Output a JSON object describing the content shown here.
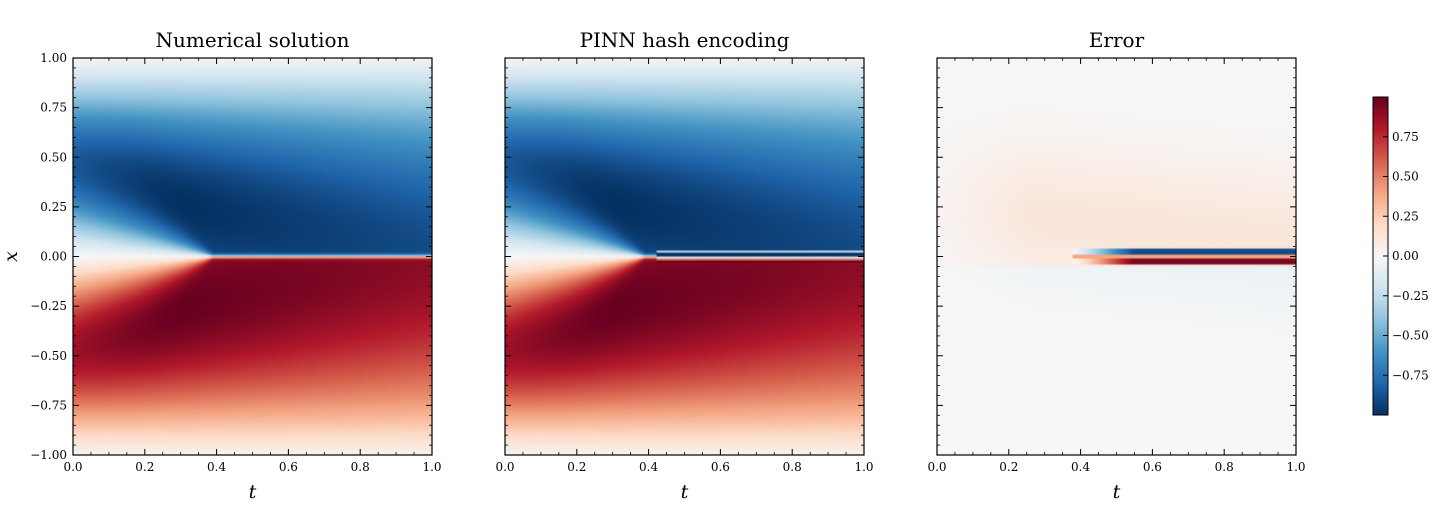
{
  "chart_data": [
    {
      "type": "heatmap",
      "title": "Numerical solution",
      "field": "numerical",
      "xlabel": "t",
      "ylabel": "x",
      "xlim": [
        0.0,
        1.0
      ],
      "ylim": [
        -1.0,
        1.0
      ],
      "xticks": [
        "0.0",
        "0.2",
        "0.4",
        "0.6",
        "0.8",
        "1.0"
      ],
      "yticks": [
        "1.00",
        "0.75",
        "0.50",
        "0.25",
        "0.00",
        "−0.25",
        "−0.50",
        "−0.75",
        "−1.00"
      ],
      "show_yticklabels": true,
      "colormap": "RdBu_r"
    },
    {
      "type": "heatmap",
      "title": "PINN hash encoding",
      "field": "pinn",
      "xlabel": "t",
      "ylabel": "",
      "xlim": [
        0.0,
        1.0
      ],
      "ylim": [
        -1.0,
        1.0
      ],
      "xticks": [
        "0.0",
        "0.2",
        "0.4",
        "0.6",
        "0.8",
        "1.0"
      ],
      "yticks": [],
      "show_yticklabels": false,
      "colormap": "RdBu_r"
    },
    {
      "type": "heatmap",
      "title": "Error",
      "field": "error",
      "xlabel": "t",
      "ylabel": "",
      "xlim": [
        0.0,
        1.0
      ],
      "ylim": [
        -1.0,
        1.0
      ],
      "xticks": [
        "0.0",
        "0.2",
        "0.4",
        "0.6",
        "0.8",
        "1.0"
      ],
      "yticks": [],
      "show_yticklabels": false,
      "colormap": "RdBu_r"
    }
  ],
  "colorbar": {
    "range": [
      -1.0,
      1.0
    ],
    "ticks": [
      0.75,
      0.5,
      0.25,
      0.0,
      -0.25,
      -0.5,
      -0.75
    ],
    "tick_labels": [
      "0.75",
      "0.50",
      "0.25",
      "0.00",
      "−0.25",
      "−0.50",
      "−0.75"
    ]
  },
  "colors": {
    "cmap_stops": [
      "#053061",
      "#2166ac",
      "#4393c3",
      "#92c5de",
      "#d1e5f0",
      "#f7f7f7",
      "#fddbc7",
      "#f4a582",
      "#d6604d",
      "#b2182b",
      "#67001f"
    ]
  }
}
